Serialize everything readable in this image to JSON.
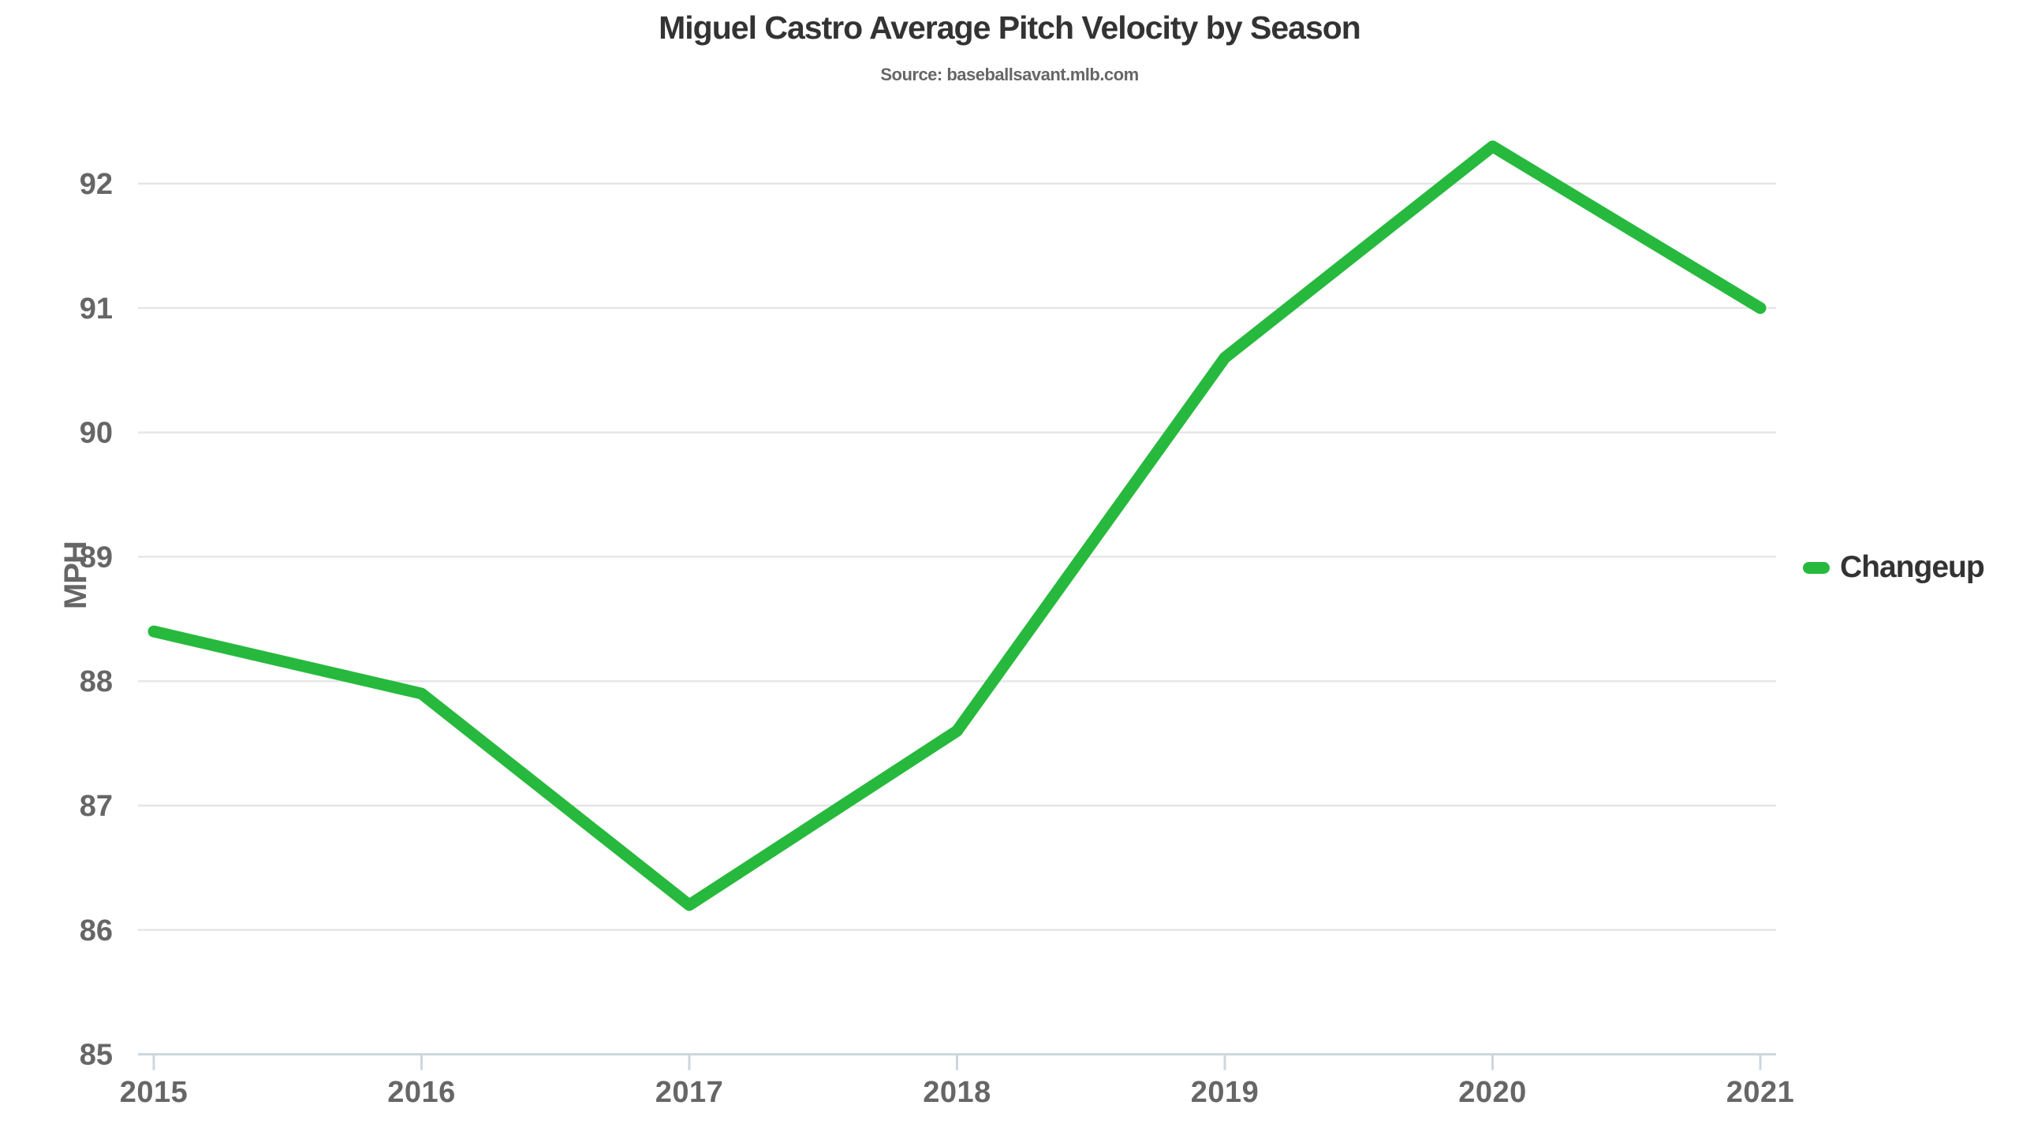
{
  "header": {
    "title": "Miguel Castro Average Pitch Velocity by Season",
    "subtitle": "Source: baseballsavant.mlb.com"
  },
  "legend": {
    "label": "Changeup",
    "swatch_color": "#27b93d"
  },
  "colors": {
    "line": "#27b93d",
    "gridline": "#e6e6e6",
    "axis_line": "#ccd6df",
    "title_text": "#333333",
    "axis_text": "#666666"
  },
  "chart_data": {
    "type": "line",
    "x": [
      2015,
      2016,
      2017,
      2018,
      2019,
      2020,
      2021
    ],
    "series": [
      {
        "name": "Changeup",
        "color": "#27b93d",
        "values": [
          88.4,
          87.9,
          86.2,
          87.6,
          90.6,
          92.3,
          91.0
        ]
      }
    ],
    "title": "Miguel Castro Average Pitch Velocity by Season",
    "subtitle": "Source: baseballsavant.mlb.com",
    "xlabel": "",
    "ylabel": "MPH",
    "y_ticks": [
      85,
      86,
      87,
      88,
      89,
      90,
      91,
      92
    ],
    "ylim": [
      85,
      92.8
    ],
    "grid": "horizontal-only",
    "legend_position": "right-middle"
  }
}
